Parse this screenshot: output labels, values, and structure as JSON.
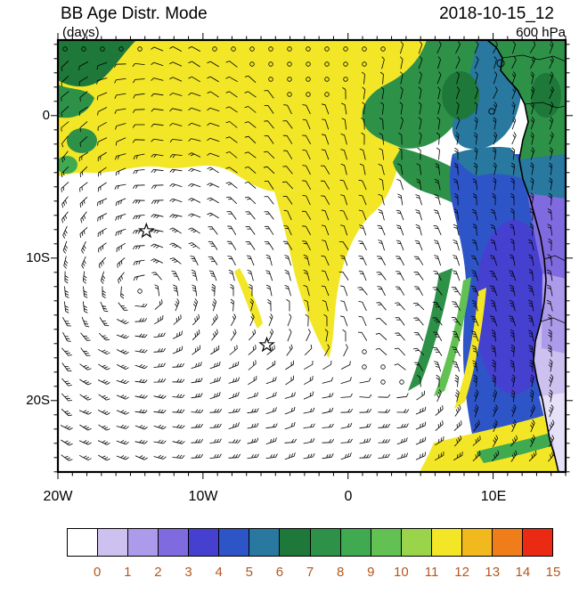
{
  "header": {
    "title": "BB Age Distr. Mode",
    "subtitle": "(days)",
    "datetime": "2018-10-15_12",
    "level": "600 hPa"
  },
  "axes": {
    "y_ticks": [
      "0",
      "10S",
      "20S"
    ],
    "x_ticks": [
      "20W",
      "10W",
      "0",
      "10E"
    ]
  },
  "colorbar": {
    "labels": [
      "0",
      "1",
      "2",
      "3",
      "4",
      "5",
      "6",
      "7",
      "8",
      "9",
      "10",
      "11",
      "12",
      "13",
      "14",
      "15"
    ],
    "colors": [
      "#FFFFFF",
      "#CDC1F0",
      "#AC9BEA",
      "#7F6BDF",
      "#4640D0",
      "#2E55C8",
      "#2878A0",
      "#1E7839",
      "#2E9148",
      "#3FAA50",
      "#63C153",
      "#9AD44B",
      "#F2E626",
      "#F2B91E",
      "#EF7D1A",
      "#EB2A14"
    ],
    "label_color": "#B4571E"
  },
  "chart_data": {
    "type": "heatmap",
    "title": "BB Age Distr. Mode",
    "units": "days",
    "valid_time": "2018-10-15_12",
    "pressure_level": "600 hPa",
    "projection": "lat-lon map of the South Atlantic and western Africa",
    "lon_range": [
      -20,
      15
    ],
    "lat_range": [
      -25,
      5.3
    ],
    "x_tick_labels": [
      "20W",
      "10W",
      "0",
      "10E"
    ],
    "y_tick_labels": [
      "0",
      "10S",
      "20S"
    ],
    "color_levels": [
      0,
      1,
      2,
      3,
      4,
      5,
      6,
      7,
      8,
      9,
      10,
      11,
      12,
      13,
      14,
      15
    ],
    "overlays": [
      "wind barbs",
      "African coastline",
      "country borders",
      "star markers",
      "calm-wind circles"
    ],
    "regions": [
      {
        "area": "northern band and central tongue",
        "value_days": 12,
        "color": "yellow"
      },
      {
        "area": "south-central Atlantic gyre",
        "value_days": 0,
        "color": "white"
      },
      {
        "area": "Gulf of Guinea / northeastern sector",
        "value_days": "7-10",
        "color": "green"
      },
      {
        "area": "patch west of northern coast",
        "value_days": 6,
        "color": "teal"
      },
      {
        "area": "southeastern Atlantic coastal plume",
        "value_days": "4-5",
        "color": "blue"
      },
      {
        "area": "southern African interior",
        "value_days": "1-3",
        "color": "lavender"
      },
      {
        "area": "bottom-right corner band",
        "value_days": "10-12",
        "color": "yellow-green"
      }
    ],
    "markers": [
      {
        "type": "star",
        "lon": -13.9,
        "lat": -8.1
      },
      {
        "type": "star",
        "lon": -5.6,
        "lat": -16.1
      }
    ]
  }
}
